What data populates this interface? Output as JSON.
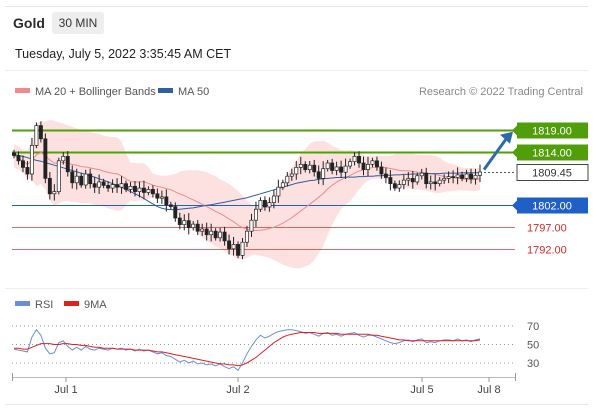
{
  "header": {
    "instrument": "Gold",
    "timeframe": "30 MIN",
    "datetime": "Tuesday, July 5, 2022 3:35:45 AM CET"
  },
  "price_panel": {
    "legend": [
      {
        "label": "MA 20 + Bollinger Bands",
        "color": "#ee8a8a"
      },
      {
        "label": "MA 50",
        "color": "#2f5f9e"
      }
    ],
    "credit": "Research © 2022 Trading Central"
  },
  "rsi_panel": {
    "legend": [
      {
        "label": "RSI",
        "color": "#6b8fd6"
      },
      {
        "label": "9MA",
        "color": "#e02020"
      }
    ],
    "levels": [
      70,
      50,
      30
    ]
  },
  "colors": {
    "accent_green": "#4f9e0a",
    "support_blue": "#1f5fc6",
    "support_red": "#d42a2a",
    "current_dark": "#333333",
    "band_fill": "#fde1e1",
    "arrow": "#2e6aa8"
  },
  "chart_data": {
    "type": "candlestick",
    "x_tick_labels": [
      "Jul 1",
      "Jul 2",
      "Jul 5",
      "Jul 8"
    ],
    "current_price": 1809.45,
    "horizontal_levels": [
      {
        "value": 1819.0,
        "label": "1819.00",
        "kind": "target",
        "color": "#4f9e0a"
      },
      {
        "value": 1814.0,
        "label": "1814.00",
        "kind": "target",
        "color": "#4f9e0a"
      },
      {
        "value": 1809.45,
        "label": "1809.45",
        "kind": "current",
        "color": "#333333"
      },
      {
        "value": 1802.0,
        "label": "1802.00",
        "kind": "pivot",
        "color": "#1f5fc6"
      },
      {
        "value": 1797.0,
        "label": "1797.00",
        "kind": "support",
        "color": "#d42a2a"
      },
      {
        "value": 1792.0,
        "label": "1792.00",
        "kind": "support",
        "color": "#d42a2a"
      }
    ],
    "close": [
      1813.2,
      1812.0,
      1810.5,
      1809.0,
      1815.5,
      1820.0,
      1817.0,
      1808.0,
      1804.5,
      1805.0,
      1812.0,
      1813.0,
      1809.5,
      1807.0,
      1808.5,
      1806.5,
      1809.0,
      1806.8,
      1806.0,
      1807.2,
      1806.4,
      1805.8,
      1806.6,
      1806.0,
      1806.8,
      1805.5,
      1806.2,
      1805.0,
      1805.8,
      1804.8,
      1805.5,
      1804.5,
      1803.5,
      1803.8,
      1802.0,
      1801.6,
      1799.0,
      1797.5,
      1798.4,
      1796.8,
      1797.6,
      1796.0,
      1796.5,
      1795.2,
      1796.0,
      1794.5,
      1795.8,
      1793.8,
      1792.0,
      1793.0,
      1790.5,
      1793.5,
      1796.0,
      1798.5,
      1801.0,
      1803.0,
      1801.5,
      1802.5,
      1804.0,
      1806.0,
      1807.0,
      1808.5,
      1809.0,
      1810.5,
      1811.2,
      1810.0,
      1811.0,
      1809.5,
      1808.0,
      1810.2,
      1811.5,
      1809.8,
      1810.6,
      1809.4,
      1810.8,
      1811.8,
      1813.0,
      1811.5,
      1810.0,
      1811.2,
      1812.0,
      1810.6,
      1809.0,
      1808.2,
      1806.8,
      1805.8,
      1806.6,
      1807.6,
      1808.0,
      1807.2,
      1808.6,
      1809.2,
      1806.8,
      1807.2,
      1806.8,
      1807.6,
      1808.0,
      1808.4,
      1808.2,
      1808.8,
      1808.0,
      1809.0,
      1807.9,
      1808.7,
      1809.45
    ],
    "ma50": [
      1813.5,
      1813.2,
      1813.0,
      1812.7,
      1812.4,
      1812.1,
      1811.9,
      1811.6,
      1811.3,
      1811.0,
      1810.7,
      1810.4,
      1810.1,
      1809.8,
      1809.5,
      1809.2,
      1808.9,
      1808.6,
      1808.3,
      1807.9,
      1807.6,
      1807.2,
      1806.8,
      1806.4,
      1806.0,
      1805.5,
      1805.0,
      1804.5,
      1804.0,
      1803.4,
      1802.8,
      1802.2,
      1801.6,
      1801.2,
      1801.0,
      1800.9,
      1800.9,
      1801.0,
      1801.1,
      1801.2,
      1801.3,
      1801.5,
      1801.7,
      1801.9,
      1802.0,
      1802.2,
      1802.4,
      1802.6,
      1802.8,
      1803.0,
      1803.2,
      1803.4,
      1803.6,
      1803.9,
      1804.2,
      1804.5,
      1804.8,
      1805.1,
      1805.4,
      1805.7,
      1806.0,
      1806.3,
      1806.6,
      1806.9,
      1807.1,
      1807.3,
      1807.5,
      1807.6,
      1807.8,
      1807.9,
      1808.0,
      1808.1,
      1808.2,
      1808.2,
      1808.3,
      1808.3,
      1808.3,
      1808.4,
      1808.4,
      1808.5,
      1808.5,
      1808.6,
      1808.6,
      1808.7,
      1808.7,
      1808.8,
      1808.8,
      1808.9,
      1808.9,
      1809.0,
      1809.0,
      1809.0,
      1809.1,
      1809.1,
      1809.1,
      1809.1,
      1809.2,
      1809.2,
      1809.2,
      1809.2,
      1809.3,
      1809.3,
      1809.3,
      1809.3,
      1809.3
    ],
    "rsi_range": [
      0,
      100
    ],
    "rsi": [
      45,
      44,
      43,
      42,
      58,
      66,
      60,
      46,
      40,
      41,
      52,
      54,
      48,
      44,
      47,
      44,
      48,
      45,
      44,
      46,
      45,
      44,
      46,
      45,
      46,
      44,
      45,
      43,
      45,
      43,
      44,
      42,
      40,
      41,
      38,
      37,
      34,
      31,
      33,
      30,
      32,
      29,
      30,
      28,
      29,
      27,
      29,
      26,
      24,
      26,
      22,
      30,
      40,
      48,
      55,
      60,
      57,
      59,
      62,
      64,
      65,
      66,
      66,
      65,
      64,
      62,
      63,
      61,
      59,
      62,
      63,
      60,
      61,
      59,
      61,
      62,
      63,
      60,
      58,
      60,
      60,
      58,
      56,
      54,
      52,
      51,
      52,
      54,
      55,
      53,
      55,
      56,
      52,
      53,
      52,
      54,
      55,
      55,
      54,
      56,
      54,
      55,
      53,
      55,
      56
    ],
    "rsi_ma": [
      46,
      46,
      45,
      45,
      47,
      49,
      51,
      51,
      51,
      50,
      50,
      51,
      51,
      50,
      50,
      49,
      49,
      48,
      47,
      47,
      46,
      46,
      46,
      45,
      45,
      45,
      45,
      44,
      44,
      44,
      44,
      43,
      42,
      42,
      41,
      40,
      39,
      38,
      37,
      36,
      35,
      34,
      33,
      32,
      31,
      30,
      29,
      29,
      28,
      28,
      27,
      28,
      30,
      33,
      36,
      40,
      44,
      48,
      52,
      55,
      58,
      60,
      61,
      62,
      63,
      63,
      63,
      63,
      62,
      62,
      62,
      62,
      62,
      61,
      61,
      61,
      61,
      61,
      61,
      61,
      60,
      60,
      59,
      58,
      57,
      56,
      55,
      55,
      54,
      54,
      54,
      54,
      54,
      54,
      54,
      54,
      54,
      54,
      54,
      54,
      54,
      54,
      54,
      54,
      55
    ]
  }
}
